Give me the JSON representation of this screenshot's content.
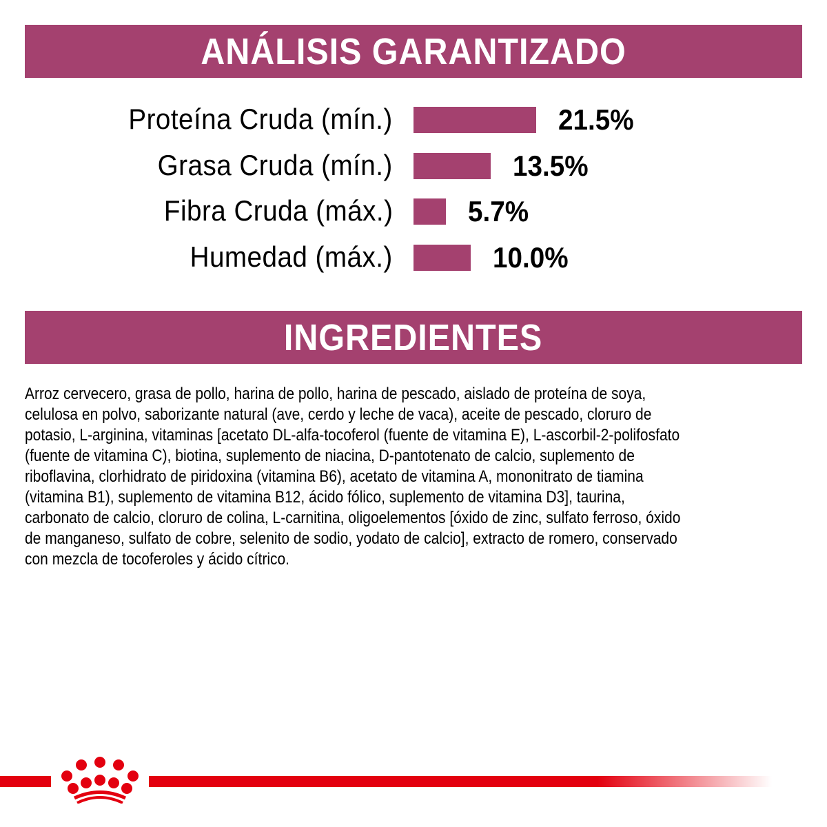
{
  "analysis": {
    "title": "ANÁLISIS GARANTIZADO",
    "rows": [
      {
        "label": "Proteína Cruda (mín.)",
        "value": "21.5%",
        "percent": 21.5
      },
      {
        "label": "Grasa Cruda (mín.)",
        "value": "13.5%",
        "percent": 13.5
      },
      {
        "label": "Fibra Cruda (máx.)",
        "value": "5.7%",
        "percent": 5.7
      },
      {
        "label": "Humedad (máx.)",
        "value": "10.0%",
        "percent": 10.0
      }
    ]
  },
  "ingredients": {
    "title": "INGREDIENTES",
    "lines": [
      "Arroz cervecero, grasa de pollo, harina de pollo, harina de pescado, aislado de proteína de soya,",
      "celulosa en polvo, saborizante natural (ave, cerdo y leche de vaca), aceite de pescado, cloruro de",
      "potasio, L-arginina, vitaminas [acetato DL-alfa-tocoferol (fuente de vitamina E), L-ascorbil-2-polifosfato",
      "(fuente de vitamina C), biotina, suplemento de niacina, D-pantotenato de calcio, suplemento de",
      "riboflavina, clorhidrato de piridoxina (vitamina B6), acetato de vitamina A, mononitrato de tiamina",
      "(vitamina B1), suplemento de vitamina B12, ácido fólico, suplemento de vitamina D3], taurina,",
      "carbonato de calcio, cloruro de colina, L-carnitina, oligoelementos [óxido de zinc, sulfato ferroso, óxido",
      "de manganeso, sulfato de cobre, selenito de sodio, yodato de calcio], extracto de romero, conservado",
      "con mezcla de tocoferoles y ácido cítrico."
    ]
  },
  "colors": {
    "accent": "#a4416f",
    "brand_red": "#e3000f"
  },
  "logo": {
    "icon": "royal-canin-crown-icon"
  }
}
